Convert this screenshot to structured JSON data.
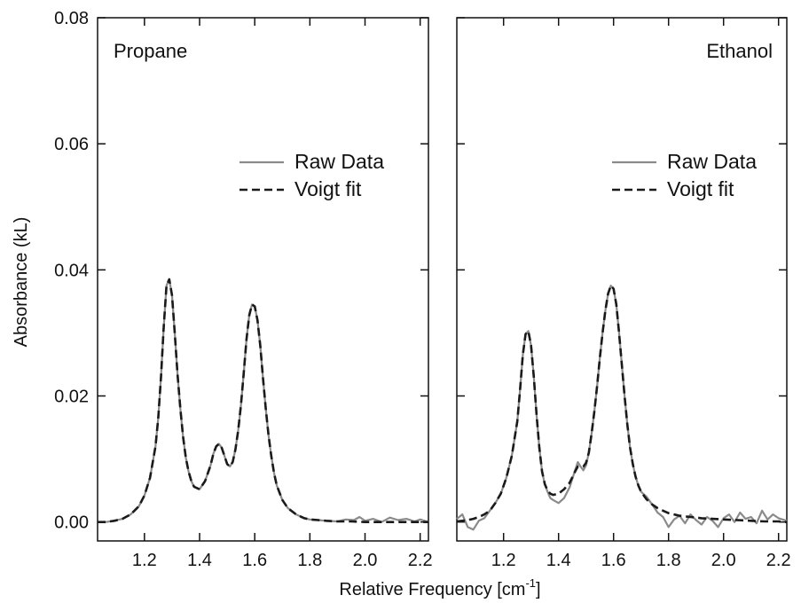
{
  "chart_data": {
    "type": "line",
    "ylabel": "Absorbance (kL)",
    "xlabel_main": "Relative Frequency [cm",
    "xlabel_sup": "-1",
    "xlabel_end": "]",
    "ylim": [
      -0.003,
      0.08
    ],
    "yticks": [
      "0.00",
      "0.02",
      "0.04",
      "0.06",
      "0.08"
    ],
    "ytick_values": [
      0,
      0.02,
      0.04,
      0.06,
      0.08
    ],
    "xticks": [
      "1.2",
      "1.4",
      "1.6",
      "1.8",
      "2.0",
      "2.2"
    ],
    "xtick_values": [
      1.2,
      1.4,
      1.6,
      1.8,
      2.0,
      2.2
    ],
    "panels": [
      {
        "title": "Propane",
        "xlim": [
          1.03,
          2.23
        ],
        "legend": [
          "Raw Data",
          "Voigt fit"
        ],
        "series": [
          {
            "name": "Raw Data",
            "x": [
              1.03,
              1.06,
              1.09,
              1.12,
              1.15,
              1.18,
              1.2,
              1.22,
              1.24,
              1.25,
              1.26,
              1.27,
              1.28,
              1.29,
              1.3,
              1.31,
              1.32,
              1.33,
              1.34,
              1.35,
              1.36,
              1.37,
              1.38,
              1.4,
              1.42,
              1.44,
              1.45,
              1.46,
              1.47,
              1.48,
              1.49,
              1.5,
              1.51,
              1.52,
              1.53,
              1.54,
              1.55,
              1.56,
              1.57,
              1.58,
              1.59,
              1.6,
              1.61,
              1.62,
              1.63,
              1.64,
              1.65,
              1.66,
              1.67,
              1.68,
              1.7,
              1.72,
              1.75,
              1.78,
              1.8,
              1.83,
              1.86,
              1.9,
              1.93,
              1.96,
              1.98,
              2.0,
              2.03,
              2.06,
              2.09,
              2.12,
              2.15,
              2.18,
              2.2,
              2.23
            ],
            "y": [
              0.0,
              0.0,
              0.0002,
              0.0005,
              0.0012,
              0.0025,
              0.0042,
              0.007,
              0.012,
              0.0165,
              0.023,
              0.031,
              0.0375,
              0.0385,
              0.036,
              0.03,
              0.0235,
              0.018,
              0.0135,
              0.0102,
              0.008,
              0.0065,
              0.0056,
              0.0052,
              0.0065,
              0.009,
              0.0108,
              0.012,
              0.0124,
              0.0118,
              0.0105,
              0.0092,
              0.0088,
              0.0095,
              0.0115,
              0.0145,
              0.0185,
              0.0235,
              0.029,
              0.0328,
              0.0345,
              0.0342,
              0.032,
              0.028,
              0.0228,
              0.018,
              0.0138,
              0.0105,
              0.0078,
              0.0058,
              0.0035,
              0.0022,
              0.0012,
              0.0006,
              0.0004,
              0.0003,
              0.0002,
              0.0001,
              0.0004,
              0.0003,
              0.0008,
              0.0002,
              0.0005,
              0.0,
              0.0007,
              0.0003,
              0.0005,
              0.0001,
              0.0004,
              0.0
            ]
          },
          {
            "name": "Voigt fit",
            "x": [
              1.03,
              1.06,
              1.09,
              1.12,
              1.15,
              1.18,
              1.2,
              1.22,
              1.24,
              1.25,
              1.26,
              1.27,
              1.28,
              1.29,
              1.3,
              1.31,
              1.32,
              1.33,
              1.34,
              1.35,
              1.36,
              1.37,
              1.38,
              1.4,
              1.42,
              1.44,
              1.45,
              1.46,
              1.47,
              1.48,
              1.49,
              1.5,
              1.51,
              1.52,
              1.53,
              1.54,
              1.55,
              1.56,
              1.57,
              1.58,
              1.59,
              1.6,
              1.61,
              1.62,
              1.63,
              1.64,
              1.65,
              1.66,
              1.67,
              1.68,
              1.7,
              1.72,
              1.75,
              1.78,
              1.8,
              1.83,
              1.86,
              1.9,
              1.95,
              2.0,
              2.05,
              2.1,
              2.15,
              2.2,
              2.23
            ],
            "y": [
              0.0,
              0.0,
              0.0002,
              0.0005,
              0.0012,
              0.0025,
              0.0042,
              0.007,
              0.012,
              0.0165,
              0.023,
              0.031,
              0.0375,
              0.0385,
              0.036,
              0.03,
              0.0235,
              0.018,
              0.0135,
              0.0102,
              0.008,
              0.0065,
              0.0056,
              0.0052,
              0.0065,
              0.009,
              0.0108,
              0.012,
              0.0124,
              0.0118,
              0.0105,
              0.0092,
              0.0088,
              0.0095,
              0.0115,
              0.0145,
              0.0185,
              0.0235,
              0.029,
              0.0328,
              0.0345,
              0.0342,
              0.032,
              0.028,
              0.0228,
              0.018,
              0.0138,
              0.0105,
              0.0078,
              0.0058,
              0.0035,
              0.0022,
              0.0012,
              0.0006,
              0.0004,
              0.0003,
              0.0002,
              0.0001,
              0.0001,
              0.0,
              0.0,
              0.0,
              0.0,
              0.0,
              0.0
            ]
          }
        ]
      },
      {
        "title": "Ethanol",
        "xlim": [
          1.03,
          2.23
        ],
        "legend": [
          "Raw Data",
          "Voigt fit"
        ],
        "series": [
          {
            "name": "Raw Data",
            "x": [
              1.03,
              1.05,
              1.07,
              1.09,
              1.11,
              1.13,
              1.15,
              1.17,
              1.19,
              1.21,
              1.23,
              1.25,
              1.26,
              1.27,
              1.28,
              1.29,
              1.3,
              1.31,
              1.32,
              1.33,
              1.34,
              1.35,
              1.36,
              1.37,
              1.38,
              1.4,
              1.42,
              1.44,
              1.46,
              1.47,
              1.48,
              1.49,
              1.5,
              1.51,
              1.52,
              1.53,
              1.54,
              1.55,
              1.56,
              1.57,
              1.58,
              1.59,
              1.6,
              1.61,
              1.62,
              1.63,
              1.64,
              1.65,
              1.66,
              1.67,
              1.68,
              1.69,
              1.7,
              1.72,
              1.74,
              1.76,
              1.78,
              1.8,
              1.82,
              1.84,
              1.86,
              1.88,
              1.9,
              1.92,
              1.94,
              1.96,
              1.98,
              2.0,
              2.02,
              2.04,
              2.06,
              2.08,
              2.1,
              2.12,
              2.14,
              2.16,
              2.18,
              2.2,
              2.23
            ],
            "y": [
              0.0005,
              0.0012,
              -0.0008,
              -0.0012,
              0.0002,
              0.0006,
              0.0018,
              0.003,
              0.0045,
              0.007,
              0.0105,
              0.016,
              0.021,
              0.0265,
              0.0298,
              0.0303,
              0.028,
              0.023,
              0.017,
              0.0118,
              0.008,
              0.006,
              0.0048,
              0.0038,
              0.0035,
              0.003,
              0.0038,
              0.0055,
              0.0082,
              0.0095,
              0.0088,
              0.0082,
              0.009,
              0.011,
              0.014,
              0.0175,
              0.0215,
              0.026,
              0.03,
              0.0335,
              0.0362,
              0.0375,
              0.037,
              0.0345,
              0.03,
              0.025,
              0.02,
              0.0155,
              0.0118,
              0.0092,
              0.0072,
              0.0058,
              0.0048,
              0.004,
              0.0028,
              0.0015,
              0.0008,
              -0.0008,
              0.0004,
              0.001,
              -0.0002,
              0.0012,
              0.0003,
              -0.0004,
              0.0008,
              0.0002,
              -0.0008,
              0.0006,
              0.0012,
              0.0,
              0.0015,
              0.0005,
              0.0008,
              -0.0002,
              0.0018,
              0.0004,
              0.0012,
              0.0006,
              0.0002
            ]
          },
          {
            "name": "Voigt fit",
            "x": [
              1.03,
              1.05,
              1.07,
              1.09,
              1.11,
              1.13,
              1.15,
              1.17,
              1.19,
              1.21,
              1.23,
              1.25,
              1.26,
              1.27,
              1.28,
              1.29,
              1.3,
              1.31,
              1.32,
              1.33,
              1.34,
              1.35,
              1.36,
              1.37,
              1.38,
              1.4,
              1.42,
              1.44,
              1.46,
              1.47,
              1.48,
              1.49,
              1.5,
              1.51,
              1.52,
              1.53,
              1.54,
              1.55,
              1.56,
              1.57,
              1.58,
              1.59,
              1.6,
              1.61,
              1.62,
              1.63,
              1.64,
              1.65,
              1.66,
              1.67,
              1.68,
              1.69,
              1.7,
              1.72,
              1.74,
              1.76,
              1.78,
              1.8,
              1.84,
              1.88,
              1.92,
              1.96,
              2.0,
              2.05,
              2.1,
              2.15,
              2.2,
              2.23
            ],
            "y": [
              0.0001,
              0.0002,
              0.0003,
              0.0005,
              0.0008,
              0.0012,
              0.0018,
              0.003,
              0.0045,
              0.007,
              0.0105,
              0.016,
              0.021,
              0.0265,
              0.0298,
              0.0303,
              0.028,
              0.023,
              0.017,
              0.0118,
              0.008,
              0.006,
              0.005,
              0.0045,
              0.0043,
              0.0045,
              0.0052,
              0.0062,
              0.008,
              0.0088,
              0.0088,
              0.0088,
              0.0094,
              0.011,
              0.014,
              0.0175,
              0.0215,
              0.026,
              0.03,
              0.0335,
              0.0362,
              0.0375,
              0.037,
              0.0345,
              0.03,
              0.025,
              0.02,
              0.0155,
              0.0118,
              0.0092,
              0.0072,
              0.0058,
              0.0048,
              0.0036,
              0.0028,
              0.0022,
              0.0018,
              0.0014,
              0.001,
              0.0008,
              0.0006,
              0.0005,
              0.0004,
              0.0003,
              0.0002,
              0.0001,
              0.0001,
              0.0
            ]
          }
        ]
      }
    ],
    "colors": {
      "raw": "#8a8a8a",
      "fit": "#1a1a1a",
      "axis": "#111111"
    },
    "grid": false,
    "legend_position": "upper-right"
  }
}
